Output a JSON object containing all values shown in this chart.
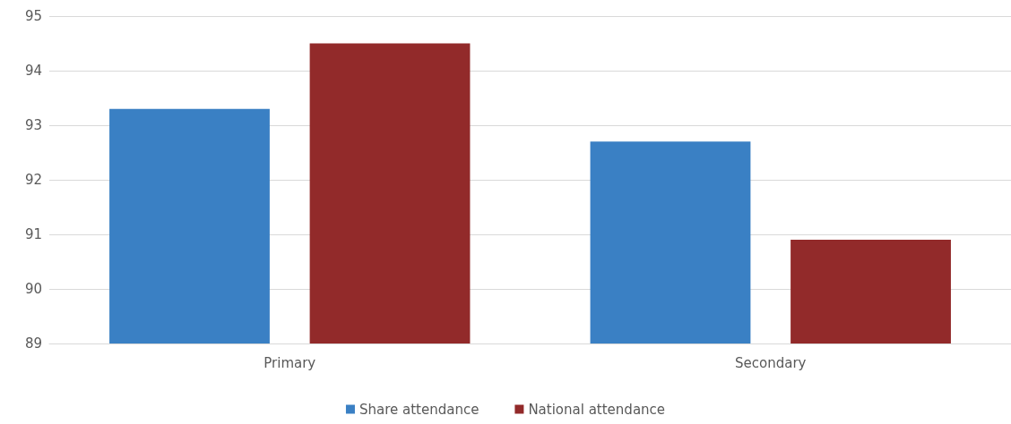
{
  "chart_data": {
    "type": "bar",
    "categories": [
      "Primary",
      "Secondary"
    ],
    "series": [
      {
        "name": "Share attendance",
        "color": "#3a80c4",
        "values": [
          93.3,
          92.7
        ]
      },
      {
        "name": "National attendance",
        "color": "#922a2a",
        "values": [
          94.5,
          90.9
        ]
      }
    ],
    "ylim": [
      89,
      95
    ],
    "yticks": [
      89,
      90,
      91,
      92,
      93,
      94,
      95
    ],
    "grid": "y",
    "legend": "bottom"
  }
}
